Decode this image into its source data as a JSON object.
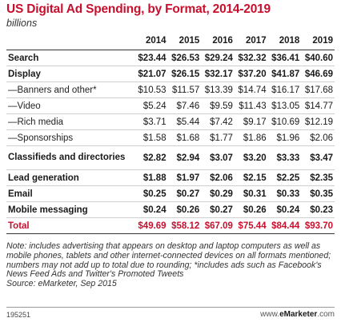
{
  "chart_data": {
    "type": "table",
    "title": "US Digital Ad Spending, by Format, 2014-2019",
    "subtitle": "billions",
    "columns": [
      "2014",
      "2015",
      "2016",
      "2017",
      "2018",
      "2019"
    ],
    "rows": [
      {
        "label": "Search",
        "values": [
          "$23.44",
          "$26.53",
          "$29.24",
          "$32.32",
          "$36.41",
          "$40.60"
        ],
        "style": "bold"
      },
      {
        "label": "Display",
        "values": [
          "$21.07",
          "$26.15",
          "$32.17",
          "$37.20",
          "$41.87",
          "$46.69"
        ],
        "style": "bold"
      },
      {
        "label": "—Banners and other*",
        "values": [
          "$10.53",
          "$11.57",
          "$13.39",
          "$14.74",
          "$16.17",
          "$17.68"
        ],
        "style": "sub"
      },
      {
        "label": "—Video",
        "values": [
          "$5.24",
          "$7.46",
          "$9.59",
          "$11.43",
          "$13.05",
          "$14.77"
        ],
        "style": "sub"
      },
      {
        "label": "—Rich media",
        "values": [
          "$3.71",
          "$5.44",
          "$7.42",
          "$9.17",
          "$10.69",
          "$12.19"
        ],
        "style": "sub"
      },
      {
        "label": "—Sponsorships",
        "values": [
          "$1.58",
          "$1.68",
          "$1.77",
          "$1.86",
          "$1.96",
          "$2.06"
        ],
        "style": "sub"
      },
      {
        "label": "Classifieds and directories",
        "values": [
          "$2.82",
          "$2.94",
          "$3.07",
          "$3.20",
          "$3.33",
          "$3.47"
        ],
        "style": "bold tall"
      },
      {
        "label": "Lead generation",
        "values": [
          "$1.88",
          "$1.97",
          "$2.06",
          "$2.15",
          "$2.25",
          "$2.35"
        ],
        "style": "bold"
      },
      {
        "label": "Email",
        "values": [
          "$0.25",
          "$0.27",
          "$0.29",
          "$0.31",
          "$0.33",
          "$0.35"
        ],
        "style": "bold"
      },
      {
        "label": "Mobile messaging",
        "values": [
          "$0.24",
          "$0.26",
          "$0.27",
          "$0.26",
          "$0.24",
          "$0.23"
        ],
        "style": "bold"
      },
      {
        "label": "Total",
        "values": [
          "$49.69",
          "$58.12",
          "$67.09",
          "$75.44",
          "$84.44",
          "$93.70"
        ],
        "style": "total"
      }
    ],
    "note": "Note: includes advertising that appears on desktop and laptop computers as well as mobile phones, tablets and other internet-connected devices on all formats mentioned; numbers may not add up to total due to rounding; *includes ads such as Facebook's News Feed Ads and Twitter's Promoted Tweets",
    "source": "Source: eMarketer, Sep 2015",
    "chart_id": "195251",
    "brand": {
      "prefix": "www.",
      "name": "eMarketer",
      "suffix": ".com"
    }
  }
}
